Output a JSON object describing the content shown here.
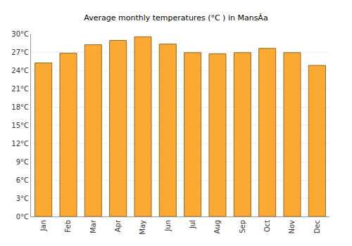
{
  "chart_data": {
    "type": "bar",
    "title": "Average monthly temperatures (°C ) in MansÃa",
    "categories": [
      "Jan",
      "Feb",
      "Mar",
      "Apr",
      "May",
      "Jun",
      "Jul",
      "Aug",
      "Sep",
      "Oct",
      "Nov",
      "Dec"
    ],
    "values": [
      25.2,
      26.8,
      28.2,
      28.9,
      29.5,
      28.3,
      26.9,
      26.7,
      26.9,
      27.6,
      26.9,
      24.8
    ],
    "color": "#fca933",
    "ylim": [
      0,
      30
    ],
    "yticks": [
      {
        "value": 0,
        "label": "0°C"
      },
      {
        "value": 3,
        "label": "3°C"
      },
      {
        "value": 6,
        "label": "6°C"
      },
      {
        "value": 9,
        "label": "9°C"
      },
      {
        "value": 12,
        "label": "12°C"
      },
      {
        "value": 15,
        "label": "15°C"
      },
      {
        "value": 18,
        "label": "18°C"
      },
      {
        "value": 21,
        "label": "21°C"
      },
      {
        "value": 24,
        "label": "24°C"
      },
      {
        "value": 27,
        "label": "27°C"
      },
      {
        "value": 30,
        "label": "30°C"
      }
    ],
    "grid": true
  }
}
